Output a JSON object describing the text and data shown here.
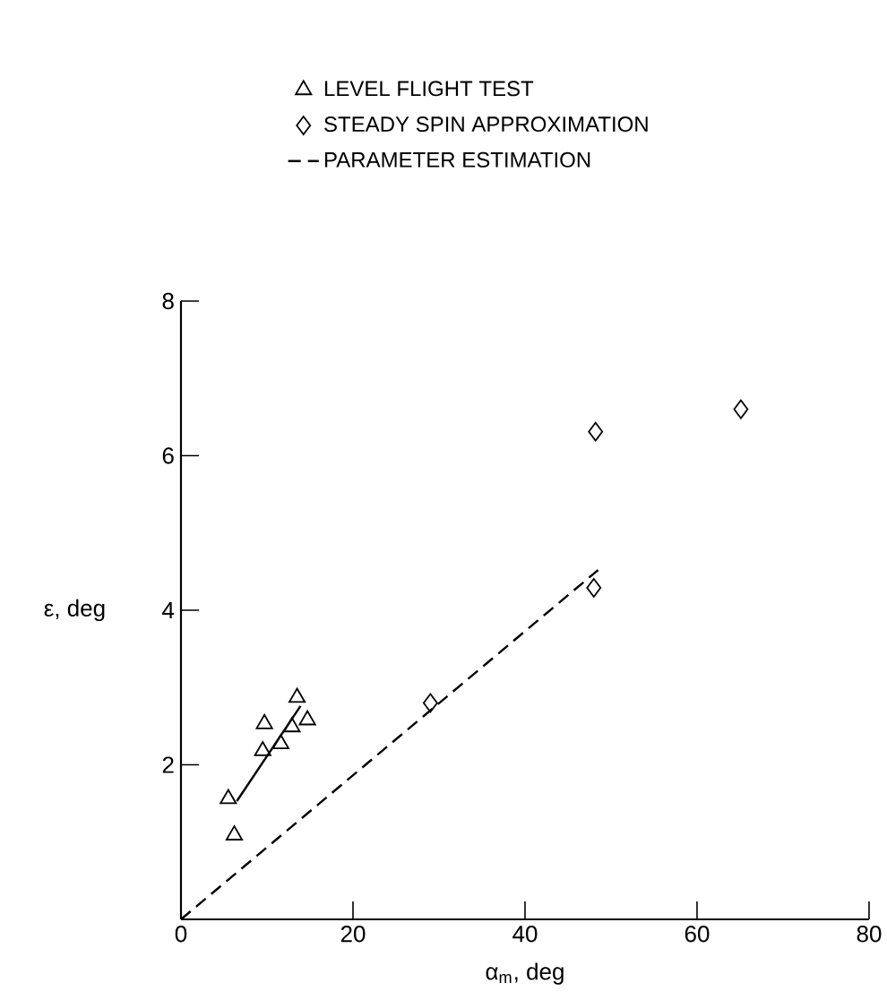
{
  "chart_data": {
    "type": "scatter",
    "xlabel": "α$_{m}$, deg",
    "ylabel": "ε, deg",
    "xlim": [
      0,
      80
    ],
    "ylim": [
      0,
      8
    ],
    "xticks": [
      0,
      20,
      40,
      60,
      80
    ],
    "yticks": [
      2,
      4,
      6,
      8
    ],
    "grid": false,
    "legend": "top",
    "series": [
      {
        "name": "LEVEL FLIGHT TEST",
        "marker": "triangle",
        "color": "#000000",
        "x": [
          5.5,
          6.2,
          9.7,
          9.5,
          11.6,
          12.9,
          13.5,
          14.7
        ],
        "values": [
          1.56,
          1.09,
          2.53,
          2.18,
          2.27,
          2.49,
          2.87,
          2.58
        ]
      },
      {
        "name": "STEADY SPIN APPROXIMATION",
        "marker": "diamond",
        "color": "#000000",
        "x": [
          29,
          48.0,
          48.2,
          65.1
        ],
        "values": [
          2.8,
          4.29,
          6.31,
          6.6
        ]
      },
      {
        "name": "PARAMETER ESTIMATION",
        "type": "line",
        "line_style": "dashed",
        "color": "#000000",
        "x": [
          0,
          48.5
        ],
        "values": [
          0,
          4.52
        ]
      },
      {
        "type": "line",
        "line_style": "solid",
        "color": "#000000",
        "x": [
          6.5,
          13.9
        ],
        "values": [
          1.53,
          2.76
        ]
      }
    ]
  }
}
